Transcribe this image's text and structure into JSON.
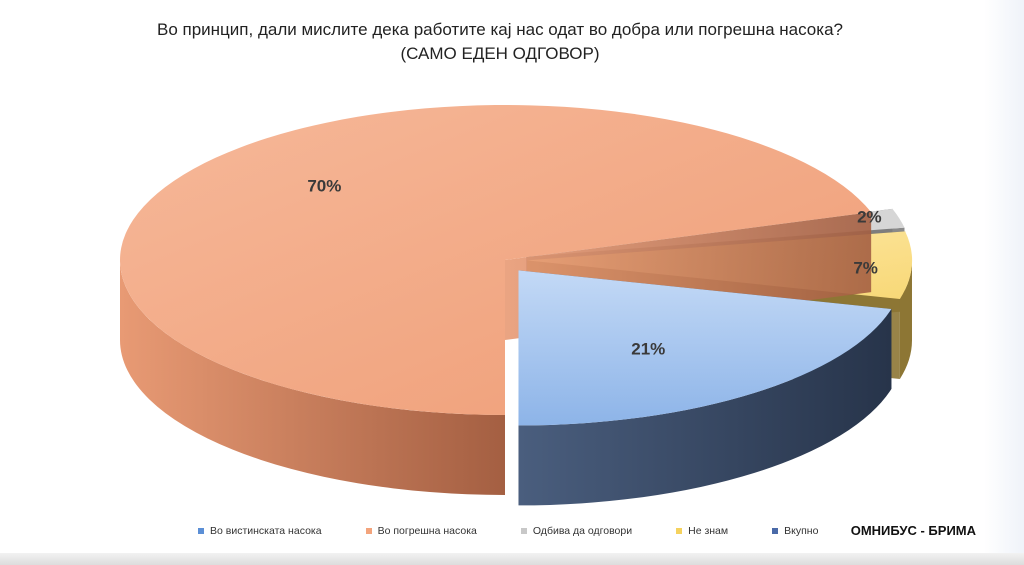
{
  "title_line1": "Во принцип, дали мислите дека работите кај нас одат во добра или погрешна насока?",
  "title_line2": "(САМО ЕДЕН ОДГОВОР)",
  "source": "ОМНИБУС - БРИМА",
  "chart_data": {
    "type": "pie",
    "three_d": true,
    "exploded": true,
    "slices": [
      {
        "name": "Во вистинската насока",
        "value": 21,
        "label": "21%",
        "top_color": "#a9c8ee",
        "side_color": "#3b4b66"
      },
      {
        "name": "Во погрешна насока",
        "value": 70,
        "label": "70%",
        "top_color": "#f3ab88",
        "side_color": "#b86f4e"
      },
      {
        "name": "Одбива да одговори",
        "value": 2,
        "label": "2%",
        "top_color": "#d0d0d0",
        "side_color": "#7a7a7a"
      },
      {
        "name": "Не знам",
        "value": 7,
        "label": "7%",
        "top_color": "#fbe08e",
        "side_color": "#8a7430"
      }
    ],
    "legend": [
      {
        "name": "Во вистинската насока",
        "color": "#5b8fd6"
      },
      {
        "name": "Во погрешна насока",
        "color": "#f3a47c"
      },
      {
        "name": "Одбива да одговори",
        "color": "#c8c8c8"
      },
      {
        "name": "Не знам",
        "color": "#f5d25e"
      },
      {
        "name": "Вкупно",
        "color": "#4a6aa8"
      }
    ],
    "legend_position": "bottom"
  }
}
